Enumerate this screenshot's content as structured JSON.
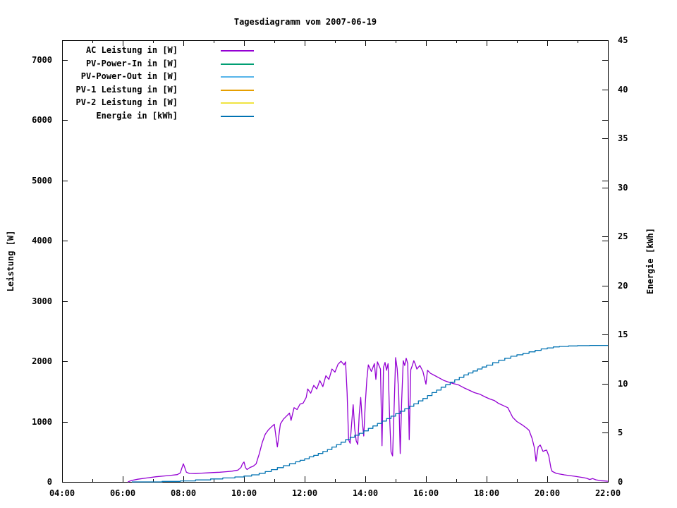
{
  "title": "Tagesdiagramm vom 2007-06-19",
  "y_left": {
    "title": "Leistung [W]",
    "tick_labels": [
      "0",
      "1000",
      "2000",
      "3000",
      "4000",
      "5000",
      "6000",
      "7000"
    ],
    "tick_values": [
      0,
      1000,
      2000,
      3000,
      4000,
      5000,
      6000,
      7000
    ],
    "range": [
      0,
      7322
    ]
  },
  "y_right": {
    "title": "Energie [kWh]",
    "tick_labels": [
      "0",
      "5",
      "10",
      "15",
      "20",
      "25",
      "30",
      "35",
      "40",
      "45"
    ],
    "tick_values": [
      0,
      5,
      10,
      15,
      20,
      25,
      30,
      35,
      40,
      45
    ],
    "range": [
      0,
      45
    ]
  },
  "x_axis": {
    "tick_labels": [
      "04:00",
      "06:00",
      "08:00",
      "10:00",
      "12:00",
      "14:00",
      "16:00",
      "18:00",
      "20:00",
      "22:00"
    ],
    "tick_hours": [
      4,
      6,
      8,
      10,
      12,
      14,
      16,
      18,
      20,
      22
    ],
    "minor_hours": [
      5,
      7,
      9,
      11,
      13,
      15,
      17,
      19,
      21
    ],
    "range": [
      4,
      22
    ]
  },
  "legend": {
    "entries": [
      {
        "label": "AC Leistung in [W]",
        "color": "#9400d3"
      },
      {
        "label": "PV-Power-In in [W]",
        "color": "#009e73"
      },
      {
        "label": "PV-Power-Out in [W]",
        "color": "#56b4e9"
      },
      {
        "label": "PV-1 Leistung in [W]",
        "color": "#e69f00"
      },
      {
        "label": "PV-2 Leistung in [W]",
        "color": "#f0e442"
      },
      {
        "label": "Energie in [kWh]",
        "color": "#0072b2"
      }
    ]
  },
  "chart_data": {
    "type": "line",
    "title": "Tagesdiagramm vom 2007-06-19",
    "xlabel": "",
    "ylabel": "Leistung [W]",
    "y2label": "Energie [kWh]",
    "xlim_hours": [
      4,
      22
    ],
    "ylim_left": [
      0,
      7322
    ],
    "ylim_right": [
      0,
      45
    ],
    "grid": false,
    "legend_position": "top-left-inside",
    "series": [
      {
        "name": "AC Leistung in [W]",
        "axis": "left",
        "color": "#9400d3",
        "style": "line",
        "points": [
          [
            6.17,
            0
          ],
          [
            6.3,
            25
          ],
          [
            6.5,
            45
          ],
          [
            6.8,
            65
          ],
          [
            7.1,
            85
          ],
          [
            7.4,
            100
          ],
          [
            7.6,
            110
          ],
          [
            7.8,
            120
          ],
          [
            7.9,
            150
          ],
          [
            7.95,
            230
          ],
          [
            8.0,
            300
          ],
          [
            8.05,
            230
          ],
          [
            8.1,
            160
          ],
          [
            8.2,
            140
          ],
          [
            8.4,
            138
          ],
          [
            8.6,
            145
          ],
          [
            8.8,
            150
          ],
          [
            9.0,
            155
          ],
          [
            9.2,
            160
          ],
          [
            9.4,
            168
          ],
          [
            9.6,
            178
          ],
          [
            9.8,
            195
          ],
          [
            9.9,
            240
          ],
          [
            9.95,
            300
          ],
          [
            10.0,
            330
          ],
          [
            10.05,
            235
          ],
          [
            10.1,
            205
          ],
          [
            10.2,
            240
          ],
          [
            10.3,
            258
          ],
          [
            10.4,
            300
          ],
          [
            10.45,
            380
          ],
          [
            10.5,
            460
          ],
          [
            10.6,
            650
          ],
          [
            10.7,
            790
          ],
          [
            10.8,
            860
          ],
          [
            10.9,
            910
          ],
          [
            11.0,
            955
          ],
          [
            11.05,
            760
          ],
          [
            11.1,
            580
          ],
          [
            11.2,
            960
          ],
          [
            11.3,
            1040
          ],
          [
            11.4,
            1090
          ],
          [
            11.5,
            1140
          ],
          [
            11.55,
            1020
          ],
          [
            11.65,
            1230
          ],
          [
            11.75,
            1200
          ],
          [
            11.85,
            1290
          ],
          [
            11.95,
            1305
          ],
          [
            12.05,
            1400
          ],
          [
            12.1,
            1540
          ],
          [
            12.2,
            1470
          ],
          [
            12.3,
            1600
          ],
          [
            12.4,
            1540
          ],
          [
            12.5,
            1680
          ],
          [
            12.6,
            1580
          ],
          [
            12.7,
            1760
          ],
          [
            12.8,
            1700
          ],
          [
            12.9,
            1870
          ],
          [
            13.0,
            1820
          ],
          [
            13.1,
            1950
          ],
          [
            13.2,
            2000
          ],
          [
            13.3,
            1940
          ],
          [
            13.35,
            1990
          ],
          [
            13.4,
            1480
          ],
          [
            13.45,
            700
          ],
          [
            13.5,
            640
          ],
          [
            13.55,
            980
          ],
          [
            13.6,
            1280
          ],
          [
            13.65,
            880
          ],
          [
            13.7,
            680
          ],
          [
            13.75,
            620
          ],
          [
            13.8,
            1120
          ],
          [
            13.85,
            1400
          ],
          [
            13.9,
            1000
          ],
          [
            13.95,
            760
          ],
          [
            14.0,
            1300
          ],
          [
            14.05,
            1700
          ],
          [
            14.1,
            1940
          ],
          [
            14.2,
            1830
          ],
          [
            14.3,
            1960
          ],
          [
            14.35,
            1700
          ],
          [
            14.4,
            1990
          ],
          [
            14.5,
            1870
          ],
          [
            14.55,
            600
          ],
          [
            14.6,
            1900
          ],
          [
            14.65,
            1980
          ],
          [
            14.7,
            1850
          ],
          [
            14.75,
            1960
          ],
          [
            14.8,
            1100
          ],
          [
            14.85,
            500
          ],
          [
            14.9,
            430
          ],
          [
            14.95,
            1200
          ],
          [
            15.0,
            2060
          ],
          [
            15.05,
            1880
          ],
          [
            15.1,
            1500
          ],
          [
            15.15,
            470
          ],
          [
            15.2,
            1350
          ],
          [
            15.25,
            2010
          ],
          [
            15.3,
            1930
          ],
          [
            15.35,
            2050
          ],
          [
            15.4,
            1960
          ],
          [
            15.45,
            700
          ],
          [
            15.5,
            1860
          ],
          [
            15.55,
            1930
          ],
          [
            15.6,
            2010
          ],
          [
            15.65,
            1950
          ],
          [
            15.7,
            1870
          ],
          [
            15.8,
            1930
          ],
          [
            15.9,
            1830
          ],
          [
            16.0,
            1620
          ],
          [
            16.05,
            1850
          ],
          [
            16.15,
            1800
          ],
          [
            16.3,
            1760
          ],
          [
            16.45,
            1720
          ],
          [
            16.6,
            1680
          ],
          [
            16.77,
            1650
          ],
          [
            16.9,
            1630
          ],
          [
            17.07,
            1610
          ],
          [
            17.25,
            1560
          ],
          [
            17.45,
            1515
          ],
          [
            17.6,
            1480
          ],
          [
            17.77,
            1455
          ],
          [
            17.95,
            1410
          ],
          [
            18.1,
            1375
          ],
          [
            18.25,
            1350
          ],
          [
            18.4,
            1300
          ],
          [
            18.55,
            1265
          ],
          [
            18.7,
            1230
          ],
          [
            18.86,
            1070
          ],
          [
            19.0,
            1000
          ],
          [
            19.16,
            950
          ],
          [
            19.3,
            900
          ],
          [
            19.4,
            855
          ],
          [
            19.5,
            720
          ],
          [
            19.58,
            560
          ],
          [
            19.63,
            340
          ],
          [
            19.7,
            580
          ],
          [
            19.77,
            610
          ],
          [
            19.86,
            505
          ],
          [
            19.93,
            520
          ],
          [
            19.98,
            527
          ],
          [
            20.05,
            430
          ],
          [
            20.12,
            230
          ],
          [
            20.16,
            175
          ],
          [
            20.3,
            140
          ],
          [
            20.56,
            117
          ],
          [
            20.9,
            94
          ],
          [
            21.2,
            70
          ],
          [
            21.3,
            60
          ],
          [
            21.4,
            40
          ],
          [
            21.5,
            55
          ],
          [
            21.6,
            35
          ],
          [
            21.75,
            20
          ],
          [
            21.9,
            15
          ],
          [
            22.0,
            10
          ]
        ]
      },
      {
        "name": "PV-Power-In in [W]",
        "axis": "left",
        "color": "#009e73",
        "style": "line",
        "points": []
      },
      {
        "name": "PV-Power-Out in [W]",
        "axis": "left",
        "color": "#56b4e9",
        "style": "line",
        "points": []
      },
      {
        "name": "PV-1 Leistung in [W]",
        "axis": "left",
        "color": "#e69f00",
        "style": "line",
        "points": []
      },
      {
        "name": "PV-2 Leistung in [W]",
        "axis": "left",
        "color": "#f0e442",
        "style": "line",
        "points": []
      },
      {
        "name": "Energie in [kWh]",
        "axis": "right",
        "color": "#0072b2",
        "style": "step",
        "points": [
          [
            6.3,
            0
          ],
          [
            7.3,
            0.05
          ],
          [
            7.9,
            0.1
          ],
          [
            8.4,
            0.2
          ],
          [
            8.9,
            0.3
          ],
          [
            9.3,
            0.4
          ],
          [
            9.7,
            0.5
          ],
          [
            10.0,
            0.6
          ],
          [
            10.25,
            0.72
          ],
          [
            10.5,
            0.88
          ],
          [
            10.7,
            1.05
          ],
          [
            10.9,
            1.25
          ],
          [
            11.1,
            1.45
          ],
          [
            11.3,
            1.65
          ],
          [
            11.5,
            1.85
          ],
          [
            11.7,
            2.05
          ],
          [
            11.85,
            2.2
          ],
          [
            12.0,
            2.35
          ],
          [
            12.15,
            2.55
          ],
          [
            12.3,
            2.7
          ],
          [
            12.45,
            2.9
          ],
          [
            12.6,
            3.1
          ],
          [
            12.75,
            3.3
          ],
          [
            12.9,
            3.55
          ],
          [
            13.05,
            3.8
          ],
          [
            13.2,
            4.05
          ],
          [
            13.35,
            4.3
          ],
          [
            13.5,
            4.55
          ],
          [
            13.65,
            4.75
          ],
          [
            13.8,
            4.95
          ],
          [
            13.95,
            5.2
          ],
          [
            14.1,
            5.45
          ],
          [
            14.25,
            5.7
          ],
          [
            14.4,
            5.95
          ],
          [
            14.55,
            6.2
          ],
          [
            14.7,
            6.45
          ],
          [
            14.85,
            6.7
          ],
          [
            15.0,
            6.95
          ],
          [
            15.15,
            7.2
          ],
          [
            15.3,
            7.45
          ],
          [
            15.45,
            7.7
          ],
          [
            15.6,
            7.95
          ],
          [
            15.75,
            8.25
          ],
          [
            15.9,
            8.5
          ],
          [
            16.05,
            8.8
          ],
          [
            16.2,
            9.1
          ],
          [
            16.35,
            9.35
          ],
          [
            16.5,
            9.65
          ],
          [
            16.65,
            9.9
          ],
          [
            16.8,
            10.15
          ],
          [
            16.95,
            10.4
          ],
          [
            17.1,
            10.65
          ],
          [
            17.25,
            10.9
          ],
          [
            17.4,
            11.1
          ],
          [
            17.55,
            11.3
          ],
          [
            17.7,
            11.5
          ],
          [
            17.85,
            11.7
          ],
          [
            18.0,
            11.9
          ],
          [
            18.2,
            12.15
          ],
          [
            18.4,
            12.4
          ],
          [
            18.6,
            12.6
          ],
          [
            18.8,
            12.8
          ],
          [
            19.0,
            12.95
          ],
          [
            19.2,
            13.1
          ],
          [
            19.4,
            13.25
          ],
          [
            19.6,
            13.4
          ],
          [
            19.8,
            13.55
          ],
          [
            20.0,
            13.65
          ],
          [
            20.2,
            13.75
          ],
          [
            20.4,
            13.8
          ],
          [
            20.7,
            13.85
          ],
          [
            21.0,
            13.88
          ],
          [
            21.4,
            13.9
          ],
          [
            22.0,
            13.9
          ]
        ]
      }
    ]
  }
}
